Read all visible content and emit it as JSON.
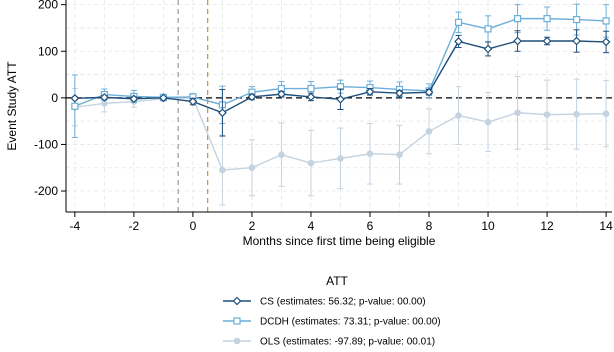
{
  "chart_data": {
    "type": "line",
    "title": "",
    "xlabel": "Months since first time being eligible",
    "ylabel": "Event Study ATT",
    "xlim": [
      -4.3,
      14.2
    ],
    "ylim": [
      -245,
      210
    ],
    "xticks": [
      -4,
      -2,
      0,
      2,
      4,
      6,
      8,
      10,
      12,
      14
    ],
    "yticks": [
      -200,
      -100,
      0,
      100,
      200
    ],
    "grid": true,
    "reference_lines": {
      "horizontal_zero": "black dashed",
      "vertical": [
        {
          "x": -0.5,
          "color": "#999999"
        },
        {
          "x": 0.5,
          "color": "#c8923a"
        }
      ]
    },
    "legend": {
      "title": "ATT",
      "placement": "bottom"
    },
    "series": [
      {
        "name": "CS (estimates: 56.32; p-value: 00.00)",
        "color": "#1f4e79",
        "marker": "diamond",
        "x": [
          -4,
          -3,
          -2,
          -1,
          0,
          1,
          2,
          3,
          4,
          5,
          6,
          7,
          8,
          9,
          10,
          11,
          12,
          13,
          14
        ],
        "y": [
          -1,
          1,
          -2,
          0,
          -8,
          -32,
          2,
          8,
          2,
          -3,
          13,
          10,
          12,
          121,
          105,
          122,
          122,
          122,
          120
        ],
        "lower": [
          -4,
          -3,
          -6,
          -2,
          -15,
          -82,
          -4,
          2,
          -6,
          -25,
          6,
          4,
          6,
          108,
          90,
          100,
          114,
          98,
          97
        ],
        "upper": [
          2,
          5,
          2,
          2,
          -1,
          18,
          8,
          14,
          10,
          19,
          20,
          16,
          18,
          134,
          120,
          144,
          130,
          146,
          143
        ]
      },
      {
        "name": "DCDH (estimates: 73.31; p-value: 00.00)",
        "color": "#6cafd8",
        "marker": "square",
        "x": [
          -4,
          -3,
          -2,
          -1,
          0,
          1,
          2,
          3,
          4,
          5,
          6,
          7,
          8,
          9,
          10,
          11,
          12,
          13,
          14
        ],
        "y": [
          -18,
          7,
          3,
          1,
          2,
          -15,
          12,
          20,
          20,
          24,
          22,
          18,
          15,
          162,
          148,
          170,
          170,
          168,
          165
        ],
        "lower": [
          -85,
          -5,
          -10,
          -5,
          -5,
          -55,
          0,
          5,
          5,
          10,
          8,
          2,
          0,
          140,
          120,
          140,
          145,
          135,
          130
        ],
        "upper": [
          49,
          19,
          16,
          7,
          9,
          25,
          24,
          35,
          35,
          38,
          36,
          34,
          30,
          184,
          176,
          200,
          195,
          201,
          200
        ]
      },
      {
        "name": "OLS (estimates: -97.89; p-value: 00.01)",
        "color": "#c5d3e0",
        "marker": "circle",
        "x": [
          -4,
          -3,
          -2,
          -1,
          0,
          1,
          2,
          3,
          4,
          5,
          6,
          7,
          8,
          9,
          10,
          11,
          12,
          13,
          14
        ],
        "y": [
          -20,
          -12,
          -8,
          -2,
          0,
          -155,
          -150,
          -122,
          -140,
          -130,
          -120,
          -122,
          -72,
          -38,
          -52,
          -32,
          -36,
          -35,
          -34
        ],
        "lower": [
          -60,
          -30,
          -20,
          -8,
          -5,
          -230,
          -210,
          -190,
          -210,
          -195,
          -185,
          -185,
          -120,
          -100,
          -115,
          -110,
          -110,
          -110,
          -105
        ],
        "upper": [
          20,
          6,
          4,
          4,
          5,
          -80,
          -90,
          -54,
          -70,
          -65,
          -55,
          -59,
          -24,
          24,
          11,
          46,
          38,
          40,
          37
        ]
      }
    ]
  }
}
